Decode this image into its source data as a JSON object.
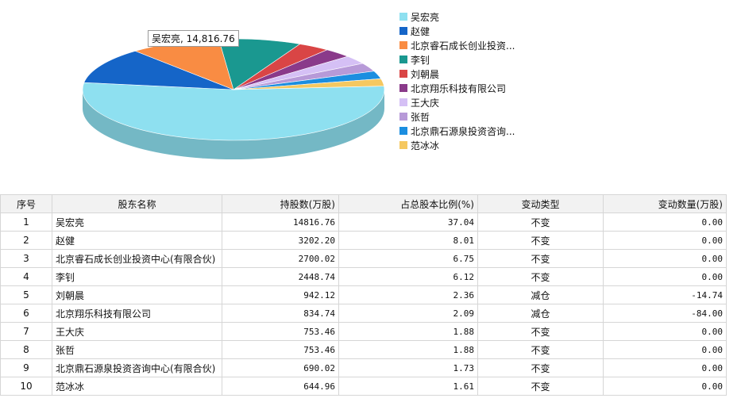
{
  "chart_data": {
    "type": "pie",
    "tooltip": "吴宏亮, 14,816.76",
    "slices": [
      {
        "name": "吴宏亮",
        "value": 14816.76,
        "color": "#8ee0f0"
      },
      {
        "name": "赵健",
        "value": 3202.2,
        "color": "#1565c8"
      },
      {
        "name": "北京睿石成长创业投资...",
        "value": 2700.02,
        "color": "#f98c43"
      },
      {
        "name": "李钊",
        "value": 2448.74,
        "color": "#1a9890"
      },
      {
        "name": "刘朝晨",
        "value": 942.12,
        "color": "#d94545"
      },
      {
        "name": "北京翔乐科技有限公司",
        "value": 834.74,
        "color": "#8a3a8a"
      },
      {
        "name": "王大庆",
        "value": 753.46,
        "color": "#d5c0f5"
      },
      {
        "name": "张哲",
        "value": 753.46,
        "color": "#b79ad8"
      },
      {
        "name": "北京鼎石源泉投资咨询...",
        "value": 690.02,
        "color": "#1b8ee0"
      },
      {
        "name": "范冰冰",
        "value": 644.96,
        "color": "#f5c860"
      }
    ]
  },
  "table": {
    "headers": [
      "序号",
      "股东名称",
      "持股数(万股)",
      "占总股本比例(%)",
      "变动类型",
      "变动数量(万股)"
    ],
    "rows": [
      [
        "1",
        "吴宏亮",
        "14816.76",
        "37.04",
        "不变",
        "0.00"
      ],
      [
        "2",
        "赵健",
        "3202.20",
        "8.01",
        "不变",
        "0.00"
      ],
      [
        "3",
        "北京睿石成长创业投资中心(有限合伙)",
        "2700.02",
        "6.75",
        "不变",
        "0.00"
      ],
      [
        "4",
        "李钊",
        "2448.74",
        "6.12",
        "不变",
        "0.00"
      ],
      [
        "5",
        "刘朝晨",
        "942.12",
        "2.36",
        "减仓",
        "-14.74"
      ],
      [
        "6",
        "北京翔乐科技有限公司",
        "834.74",
        "2.09",
        "减仓",
        "-84.00"
      ],
      [
        "7",
        "王大庆",
        "753.46",
        "1.88",
        "不变",
        "0.00"
      ],
      [
        "8",
        "张哲",
        "753.46",
        "1.88",
        "不变",
        "0.00"
      ],
      [
        "9",
        "北京鼎石源泉投资咨询中心(有限合伙)",
        "690.02",
        "1.73",
        "不变",
        "0.00"
      ],
      [
        "10",
        "范冰冰",
        "644.96",
        "1.61",
        "不变",
        "0.00"
      ]
    ]
  }
}
